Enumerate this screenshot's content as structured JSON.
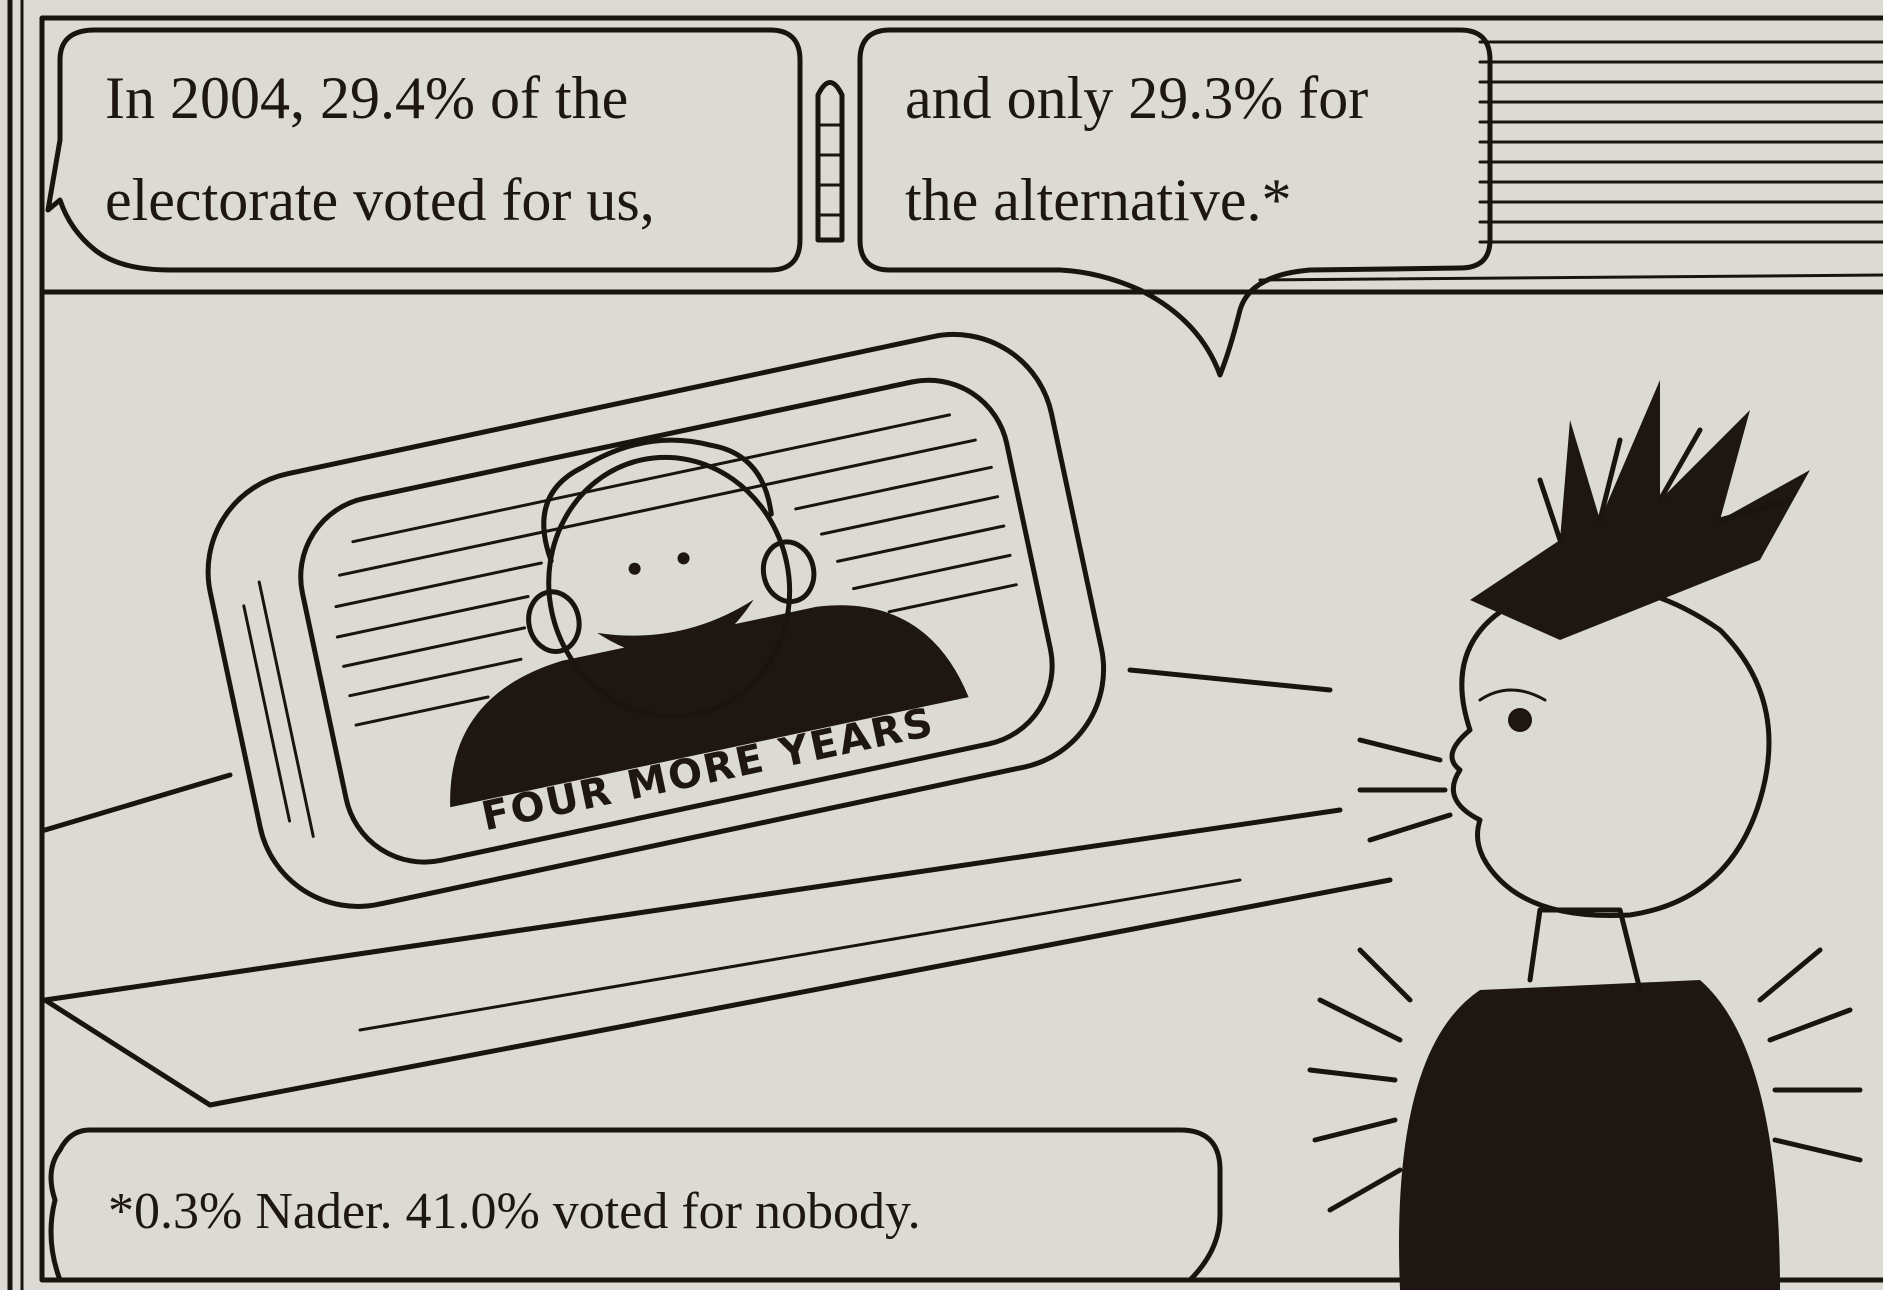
{
  "panel": {
    "bubbles": [
      {
        "lines": [
          "In 2004, 29.4% of the",
          "electorate voted for us,"
        ]
      },
      {
        "lines": [
          "and only 29.3% for",
          "the alternative.*"
        ]
      }
    ],
    "tv": {
      "caption": "FOUR MORE YEARS"
    },
    "footnote": {
      "text": "*0.3% Nader. 41.0% voted for nobody."
    }
  }
}
